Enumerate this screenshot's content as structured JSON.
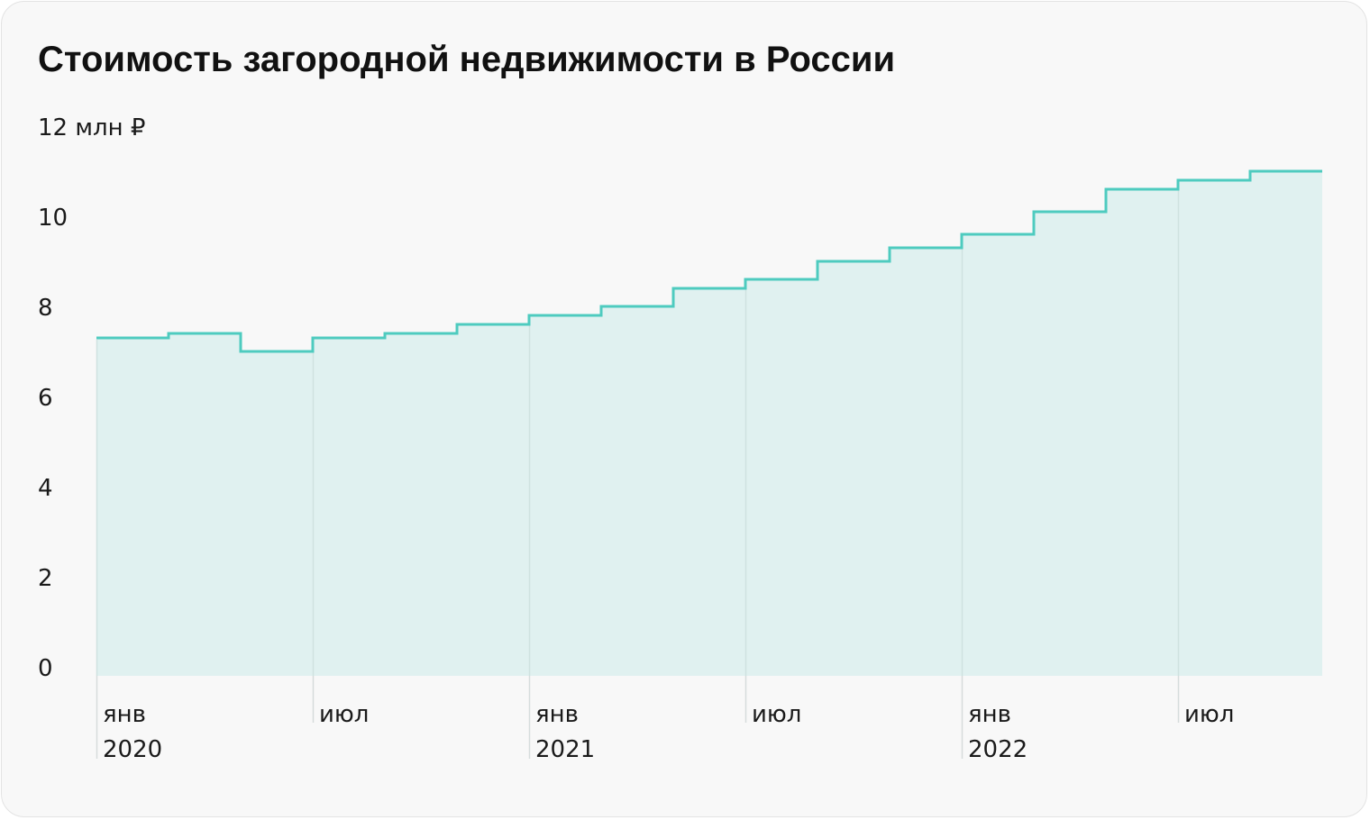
{
  "chart_data": {
    "type": "area",
    "title": "Стоимость загородной недвижимости в России",
    "ylabel": "",
    "xlabel": "",
    "ylim": [
      0,
      12
    ],
    "y_ticks": [
      "0",
      "2",
      "4",
      "6",
      "8",
      "10",
      "12 млн ₽"
    ],
    "y_tick_values": [
      0,
      2,
      4,
      6,
      8,
      10,
      12
    ],
    "x_ticks": [
      {
        "month": "янв",
        "year": "2020"
      },
      {
        "month": "июл",
        "year": ""
      },
      {
        "month": "янв",
        "year": "2021"
      },
      {
        "month": "июл",
        "year": ""
      },
      {
        "month": "янв",
        "year": "2022"
      },
      {
        "month": "июл",
        "year": ""
      }
    ],
    "x": [
      "2020-01",
      "2020-03",
      "2020-05",
      "2020-07",
      "2020-09",
      "2020-11",
      "2021-01",
      "2021-03",
      "2021-05",
      "2021-07",
      "2021-09",
      "2021-11",
      "2022-01",
      "2022-03",
      "2022-05",
      "2022-07",
      "2022-09"
    ],
    "values": [
      7.3,
      7.4,
      7.0,
      7.3,
      7.4,
      7.6,
      7.8,
      8.0,
      8.4,
      8.6,
      9.0,
      9.3,
      9.6,
      10.1,
      10.6,
      10.8,
      11.0
    ],
    "step": true,
    "grid": "vertical",
    "colors": {
      "line": "#4ecbbf",
      "fill": "#e0f1f0",
      "grid": "#d6dcdc"
    }
  }
}
